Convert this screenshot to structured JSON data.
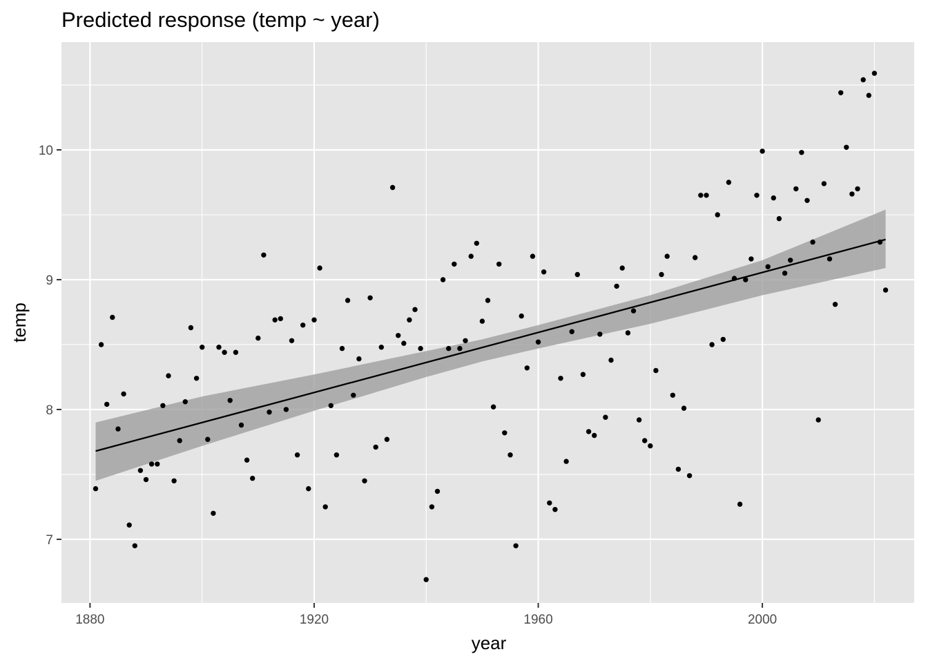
{
  "chart_data": {
    "type": "scatter",
    "title": "Predicted response (temp ~ year)",
    "xlabel": "year",
    "ylabel": "temp",
    "xlim": [
      1874.9,
      2027.1
    ],
    "ylim": [
      6.51,
      10.83
    ],
    "x_ticks": [
      1880,
      1920,
      1960,
      2000
    ],
    "x_minor_ticks": [
      1900,
      1940,
      1980,
      2020
    ],
    "y_ticks": [
      7,
      8,
      9,
      10
    ],
    "y_minor_ticks": [
      7.5,
      8.5,
      9.5,
      10.5
    ],
    "x_tick_labels": [
      "1880",
      "1920",
      "1960",
      "2000"
    ],
    "y_tick_labels": [
      "7",
      "8",
      "9",
      "10"
    ],
    "grid": true,
    "legend": "none",
    "colors": {
      "panel": "#e5e5e5",
      "grid": "#ffffff",
      "points": "#000000",
      "ribbon": "#999999",
      "line": "#000000"
    },
    "series": [
      {
        "kind": "points",
        "x": [
          1881,
          1882,
          1883,
          1884,
          1885,
          1886,
          1887,
          1888,
          1889,
          1890,
          1891,
          1892,
          1893,
          1894,
          1895,
          1896,
          1897,
          1898,
          1899,
          1900,
          1901,
          1902,
          1903,
          1904,
          1905,
          1906,
          1907,
          1908,
          1909,
          1910,
          1911,
          1912,
          1913,
          1914,
          1915,
          1916,
          1917,
          1918,
          1919,
          1920,
          1921,
          1922,
          1923,
          1924,
          1925,
          1926,
          1927,
          1928,
          1929,
          1930,
          1931,
          1932,
          1933,
          1934,
          1935,
          1936,
          1937,
          1938,
          1939,
          1940,
          1941,
          1942,
          1943,
          1944,
          1945,
          1946,
          1947,
          1948,
          1949,
          1950,
          1951,
          1952,
          1953,
          1954,
          1955,
          1956,
          1957,
          1958,
          1959,
          1960,
          1961,
          1962,
          1963,
          1964,
          1965,
          1966,
          1967,
          1968,
          1969,
          1970,
          1971,
          1972,
          1973,
          1974,
          1975,
          1976,
          1977,
          1978,
          1979,
          1980,
          1981,
          1982,
          1983,
          1984,
          1985,
          1986,
          1987,
          1988,
          1989,
          1990,
          1991,
          1992,
          1993,
          1994,
          1995,
          1996,
          1997,
          1998,
          1999,
          2000,
          2001,
          2002,
          2003,
          2004,
          2005,
          2006,
          2007,
          2008,
          2009,
          2010,
          2011,
          2012,
          2013,
          2014,
          2015,
          2016,
          2017,
          2018,
          2019,
          2020,
          2021,
          2022
        ],
        "y": [
          7.39,
          8.5,
          8.04,
          8.71,
          7.85,
          8.12,
          7.11,
          6.95,
          7.53,
          7.46,
          7.58,
          7.58,
          8.03,
          8.26,
          7.45,
          7.76,
          8.06,
          8.63,
          8.24,
          8.48,
          7.77,
          7.2,
          8.48,
          8.44,
          8.07,
          8.44,
          7.88,
          7.61,
          7.47,
          8.55,
          9.19,
          7.98,
          8.69,
          8.7,
          8.0,
          8.53,
          7.65,
          8.65,
          7.39,
          8.69,
          9.09,
          7.25,
          8.03,
          7.65,
          8.47,
          8.84,
          8.11,
          8.39,
          7.45,
          8.86,
          7.71,
          8.48,
          7.77,
          9.71,
          8.57,
          8.51,
          8.69,
          8.77,
          8.47,
          6.69,
          7.25,
          7.37,
          9.0,
          8.47,
          9.12,
          8.47,
          8.53,
          9.18,
          9.28,
          8.68,
          8.84,
          8.02,
          9.12,
          7.82,
          7.65,
          6.95,
          8.72,
          8.32,
          9.18,
          8.52,
          9.06,
          7.28,
          7.23,
          8.24,
          7.6,
          8.6,
          9.04,
          8.27,
          7.83,
          7.8,
          8.58,
          7.94,
          8.38,
          8.95,
          9.09,
          8.59,
          8.76,
          7.92,
          7.76,
          7.72,
          8.3,
          9.04,
          9.18,
          8.11,
          7.54,
          8.01,
          7.49,
          9.17,
          9.65,
          9.65,
          8.5,
          9.5,
          8.54,
          9.75,
          9.01,
          7.27,
          9.0,
          9.16,
          9.65,
          9.99,
          9.1,
          9.63,
          9.47,
          9.05,
          9.15,
          9.7,
          9.98,
          9.61,
          9.29,
          7.92,
          9.74,
          9.16,
          8.81,
          10.44,
          10.02,
          9.66,
          9.7,
          10.54,
          10.42,
          10.59,
          9.29,
          8.92
        ]
      },
      {
        "kind": "fit",
        "x": [
          1881,
          2022
        ],
        "y": [
          7.68,
          9.31
        ]
      },
      {
        "kind": "band",
        "x": [
          1881,
          1900,
          1920,
          1940,
          1950,
          1960,
          1980,
          2000,
          2022
        ],
        "lower": [
          7.45,
          7.72,
          7.99,
          8.25,
          8.37,
          8.47,
          8.66,
          8.88,
          9.09
        ],
        "upper": [
          7.9,
          8.1,
          8.27,
          8.45,
          8.54,
          8.65,
          8.88,
          9.15,
          9.54
        ]
      }
    ]
  }
}
